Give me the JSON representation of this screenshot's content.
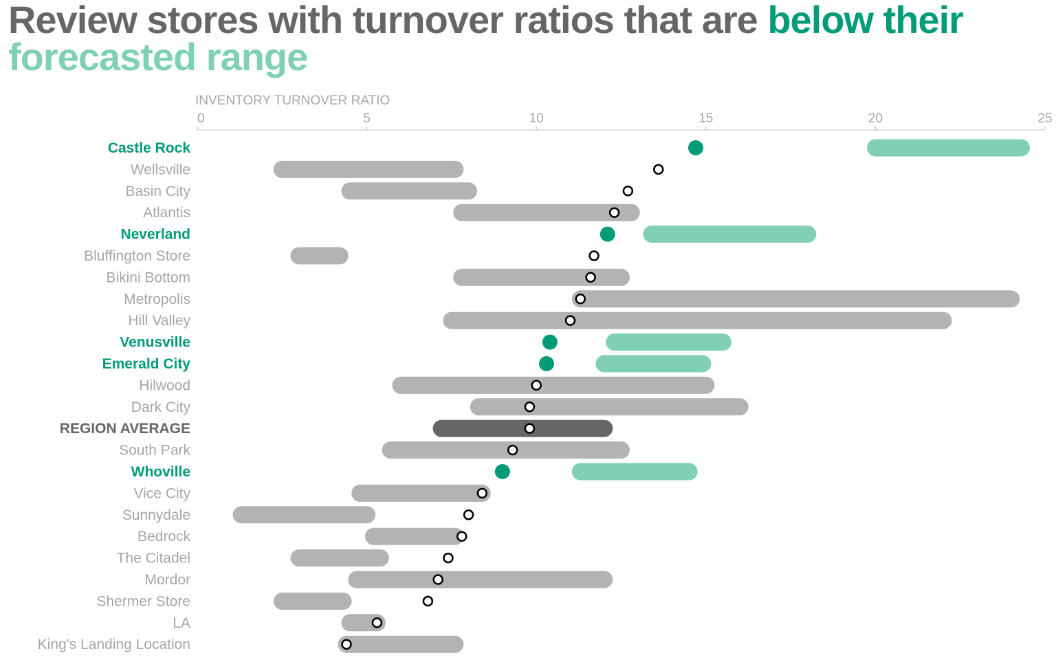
{
  "title": {
    "part1": "Review stores with ",
    "part2": "turnover ratios",
    "part3": " that are ",
    "part4": "below their",
    "part5": "forecasted range"
  },
  "colors": {
    "below_highlight": "#009b77",
    "below_range": "#80cfb7",
    "range_gray": "#b3b3b3",
    "average_range": "#666666",
    "label_gray": "#a6a6a6",
    "title_gray": "#666666"
  },
  "chart_data": {
    "type": "dot-range",
    "xlabel": "INVENTORY TURNOVER RATIO",
    "xlim": [
      0,
      25
    ],
    "xticks": [
      0,
      5,
      10,
      15,
      20,
      25
    ],
    "grid": false,
    "rows": [
      {
        "store": "Castle Rock",
        "actual": 14.7,
        "range": [
          20.0,
          24.3
        ],
        "status": "below"
      },
      {
        "store": "Wellsville",
        "actual": 13.6,
        "range": [
          2.5,
          7.6
        ],
        "status": "normal"
      },
      {
        "store": "Basin City",
        "actual": 12.7,
        "range": [
          4.5,
          8.0
        ],
        "status": "normal"
      },
      {
        "store": "Atlantis",
        "actual": 12.3,
        "range": [
          7.8,
          12.8
        ],
        "status": "normal"
      },
      {
        "store": "Neverland",
        "actual": 12.1,
        "range": [
          13.4,
          18.0
        ],
        "status": "below"
      },
      {
        "store": "Bluffington Store",
        "actual": 11.7,
        "range": [
          3.0,
          4.2
        ],
        "status": "normal"
      },
      {
        "store": "Bikini Bottom",
        "actual": 11.6,
        "range": [
          7.8,
          12.5
        ],
        "status": "normal"
      },
      {
        "store": "Metropolis",
        "actual": 11.3,
        "range": [
          11.3,
          24.0
        ],
        "status": "normal"
      },
      {
        "store": "Hill Valley",
        "actual": 11.0,
        "range": [
          7.5,
          22.0
        ],
        "status": "normal"
      },
      {
        "store": "Venusville",
        "actual": 10.4,
        "range": [
          12.3,
          15.5
        ],
        "status": "below"
      },
      {
        "store": "Emerald City",
        "actual": 10.3,
        "range": [
          12.0,
          14.9
        ],
        "status": "below"
      },
      {
        "store": "Hilwood",
        "actual": 10.0,
        "range": [
          6.0,
          15.0
        ],
        "status": "normal"
      },
      {
        "store": "Dark City",
        "actual": 9.8,
        "range": [
          8.3,
          16.0
        ],
        "status": "normal"
      },
      {
        "store": "REGION AVERAGE",
        "actual": 9.8,
        "range": [
          7.2,
          12.0
        ],
        "status": "average"
      },
      {
        "store": "South Park",
        "actual": 9.3,
        "range": [
          5.7,
          12.5
        ],
        "status": "normal"
      },
      {
        "store": "Whoville",
        "actual": 9.0,
        "range": [
          11.3,
          14.5
        ],
        "status": "below"
      },
      {
        "store": "Vice City",
        "actual": 8.4,
        "range": [
          4.8,
          8.4
        ],
        "status": "normal"
      },
      {
        "store": "Sunnydale",
        "actual": 8.0,
        "range": [
          1.3,
          5.0
        ],
        "status": "normal"
      },
      {
        "store": "Bedrock",
        "actual": 7.8,
        "range": [
          5.2,
          7.6
        ],
        "status": "normal"
      },
      {
        "store": "The Citadel",
        "actual": 7.4,
        "range": [
          3.0,
          5.4
        ],
        "status": "normal"
      },
      {
        "store": "Mordor",
        "actual": 7.1,
        "range": [
          4.7,
          12.0
        ],
        "status": "normal"
      },
      {
        "store": "Shermer Store",
        "actual": 6.8,
        "range": [
          2.5,
          4.3
        ],
        "status": "normal"
      },
      {
        "store": "LA",
        "actual": 5.3,
        "range": [
          4.5,
          5.3
        ],
        "status": "normal"
      },
      {
        "store": "King's Landing Location",
        "actual": 4.4,
        "range": [
          4.4,
          7.6
        ],
        "status": "normal"
      }
    ]
  }
}
